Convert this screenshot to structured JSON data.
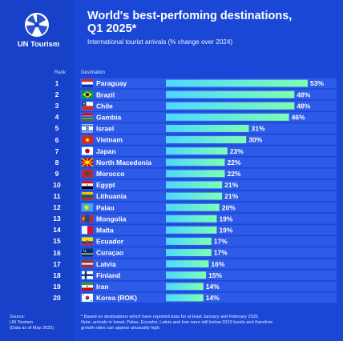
{
  "header": {
    "title_line1": "World's best-perfoming destinations,",
    "title_line2": "Q1 2025*",
    "subtitle": "International tourist arrivals (% change over 2024)"
  },
  "brand": {
    "name": "UN Tourism"
  },
  "columns": {
    "rank": "Rank",
    "destination": "Destination"
  },
  "source": {
    "line1": "Source:",
    "line2": "UN Tourism",
    "line3": "(Data as of May 2025)"
  },
  "footnote": {
    "line1": "* Based on destinations which have reported data for at least January and February 2025",
    "line2": "Note: arrivals in Israel, Palau, Ecuador, Latvia and Iran were still below 2019 levels and therefore",
    "line3": "growth rates can appear unusually high."
  },
  "colors": {
    "background": "#1a47d6",
    "sidebar": "#1741c8",
    "row_band": "#2d5be8",
    "bar_start": "#4fd7ff",
    "bar_end": "#7dffb0",
    "text": "#ffffff"
  },
  "chart_data": {
    "type": "bar",
    "orientation": "horizontal",
    "title": "World's best-perfoming destinations, Q1 2025*",
    "subtitle": "International tourist arrivals (% change over 2024)",
    "xlim": [
      0,
      53
    ],
    "grid": false,
    "rows": [
      {
        "rank": "1",
        "name": "Paraguay",
        "value": 53,
        "label": "53%",
        "flag": "paraguay-flag"
      },
      {
        "rank": "2",
        "name": "Brazil",
        "value": 48,
        "label": "48%",
        "flag": "brazil-flag"
      },
      {
        "rank": "3",
        "name": "Chile",
        "value": 48,
        "label": "48%",
        "flag": "chile-flag"
      },
      {
        "rank": "4",
        "name": "Gambia",
        "value": 46,
        "label": "46%",
        "flag": "gambia-flag"
      },
      {
        "rank": "5",
        "name": "Israel",
        "value": 31,
        "label": "31%",
        "flag": "israel-flag"
      },
      {
        "rank": "6",
        "name": "Vietnam",
        "value": 30,
        "label": "30%",
        "flag": "vietnam-flag"
      },
      {
        "rank": "7",
        "name": "Japan",
        "value": 23,
        "label": "23%",
        "flag": "japan-flag"
      },
      {
        "rank": "8",
        "name": "North Macedonia",
        "value": 22,
        "label": "22%",
        "flag": "north-macedonia-flag"
      },
      {
        "rank": "9",
        "name": "Morocco",
        "value": 22,
        "label": "22%",
        "flag": "morocco-flag"
      },
      {
        "rank": "10",
        "name": "Egypt",
        "value": 21,
        "label": "21%",
        "flag": "egypt-flag"
      },
      {
        "rank": "11",
        "name": "Lithuania",
        "value": 21,
        "label": "21%",
        "flag": "lithuania-flag"
      },
      {
        "rank": "12",
        "name": "Palau",
        "value": 20,
        "label": "20%",
        "flag": "palau-flag"
      },
      {
        "rank": "13",
        "name": "Mongolia",
        "value": 19,
        "label": "19%",
        "flag": "mongolia-flag"
      },
      {
        "rank": "14",
        "name": "Malta",
        "value": 19,
        "label": "19%",
        "flag": "malta-flag"
      },
      {
        "rank": "15",
        "name": "Ecuador",
        "value": 17,
        "label": "17%",
        "flag": "ecuador-flag"
      },
      {
        "rank": "16",
        "name": "Curaçao",
        "value": 17,
        "label": "17%",
        "flag": "curacao-flag"
      },
      {
        "rank": "17",
        "name": "Latvia",
        "value": 16,
        "label": "16%",
        "flag": "latvia-flag"
      },
      {
        "rank": "18",
        "name": "Finland",
        "value": 15,
        "label": "15%",
        "flag": "finland-flag"
      },
      {
        "rank": "19",
        "name": "Iran",
        "value": 14,
        "label": "14%",
        "flag": "iran-flag"
      },
      {
        "rank": "20",
        "name": "Korea (ROK)",
        "value": 14,
        "label": "14%",
        "flag": "korea-flag"
      }
    ]
  }
}
